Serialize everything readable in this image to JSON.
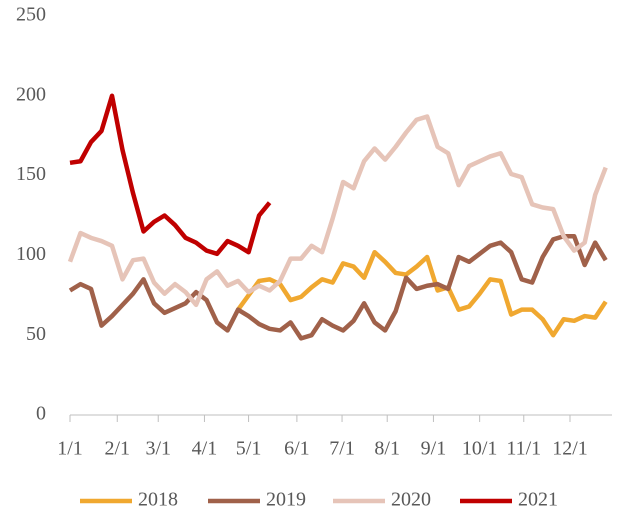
{
  "chart_data": {
    "type": "line",
    "x": [
      0,
      1,
      2,
      3,
      4,
      5,
      6,
      7,
      8,
      9,
      10,
      11,
      12,
      13,
      14,
      15,
      16,
      17,
      18,
      19,
      20,
      21,
      22,
      23,
      24,
      25,
      26,
      27,
      28,
      29,
      30,
      31,
      32,
      33,
      34,
      35,
      36,
      37,
      38,
      39,
      40,
      41,
      42,
      43,
      44,
      45,
      46,
      47,
      48,
      49,
      50,
      51
    ],
    "series": [
      {
        "name": "2018",
        "color": "#f0a830",
        "values": [
          null,
          null,
          null,
          null,
          null,
          null,
          null,
          null,
          null,
          null,
          null,
          null,
          null,
          null,
          null,
          null,
          66,
          75,
          84,
          85,
          82,
          72,
          74,
          80,
          85,
          83,
          95,
          93,
          86,
          102,
          96,
          89,
          88,
          93,
          99,
          78,
          80,
          66,
          68,
          76,
          85,
          84,
          63,
          66,
          66,
          60,
          50,
          60,
          59,
          62,
          61,
          71
        ]
      },
      {
        "name": "2019",
        "color": "#a0614a",
        "values": [
          78,
          82,
          79,
          56,
          62,
          69,
          76,
          85,
          70,
          64,
          67,
          70,
          77,
          72,
          58,
          53,
          66,
          62,
          57,
          54,
          53,
          58,
          48,
          50,
          60,
          56,
          53,
          59,
          70,
          58,
          53,
          65,
          86,
          79,
          81,
          82,
          79,
          99,
          96,
          101,
          106,
          108,
          102,
          85,
          83,
          99,
          110,
          112,
          112,
          94,
          108,
          97
        ]
      },
      {
        "name": "2020",
        "color": "#e6c4b8",
        "values": [
          96,
          114,
          111,
          109,
          106,
          85,
          97,
          98,
          83,
          76,
          82,
          77,
          69,
          85,
          90,
          81,
          84,
          77,
          81,
          78,
          84,
          98,
          98,
          106,
          102,
          123,
          146,
          142,
          159,
          167,
          160,
          168,
          177,
          185,
          187,
          168,
          164,
          144,
          156,
          159,
          162,
          164,
          151,
          149,
          132,
          130,
          129,
          112,
          103,
          108,
          138,
          155
        ]
      },
      {
        "name": "2021",
        "color": "#c00000",
        "values": [
          158,
          159,
          171,
          178,
          200,
          166,
          139,
          115,
          121,
          125,
          119,
          111,
          108,
          103,
          101,
          109,
          106,
          102,
          125,
          133,
          null,
          null,
          null,
          null,
          null,
          null,
          null,
          null,
          null,
          null,
          null,
          null,
          null,
          null,
          null,
          null,
          null,
          null,
          null,
          null,
          null,
          null,
          null,
          null,
          null,
          null,
          null,
          null,
          null,
          null,
          null,
          null
        ]
      }
    ],
    "xlim": [
      0,
      51.6
    ],
    "xticks": [
      {
        "value": 0,
        "label": "1/1"
      },
      {
        "value": 4.5,
        "label": "2/1"
      },
      {
        "value": 8.4,
        "label": "3/1"
      },
      {
        "value": 12.8,
        "label": "4/1"
      },
      {
        "value": 17,
        "label": "5/1"
      },
      {
        "value": 21.6,
        "label": "6/1"
      },
      {
        "value": 25.9,
        "label": "7/1"
      },
      {
        "value": 30.2,
        "label": "8/1"
      },
      {
        "value": 34.6,
        "label": "9/1"
      },
      {
        "value": 39,
        "label": "10/1"
      },
      {
        "value": 43.2,
        "label": "11/1"
      },
      {
        "value": 47.6,
        "label": "12/1"
      }
    ],
    "ylim": [
      0,
      250
    ],
    "yticks": [
      0,
      50,
      100,
      150,
      200,
      250
    ],
    "legend": "bottom"
  }
}
